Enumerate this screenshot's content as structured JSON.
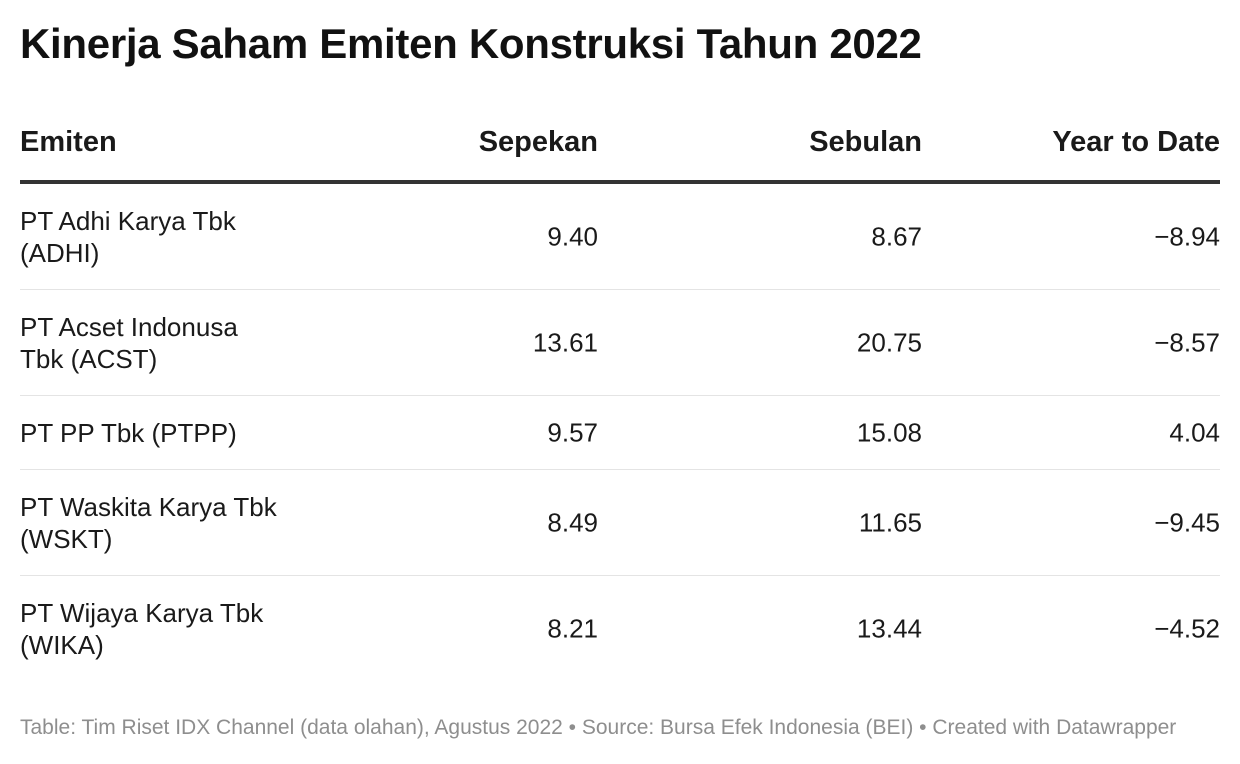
{
  "title": "Kinerja Saham Emiten Konstruksi Tahun 2022",
  "chart_data": {
    "type": "table",
    "title": "Kinerja Saham Emiten Konstruksi Tahun 2022",
    "columns": [
      "Emiten",
      "Sepekan",
      "Sebulan",
      "Year to Date"
    ],
    "rows": [
      {
        "emiten": "PT Adhi Karya Tbk (ADHI)",
        "sepekan": "9.40",
        "sebulan": "8.67",
        "ytd": "−8.94"
      },
      {
        "emiten": "PT Acset Indonusa Tbk (ACST)",
        "sepekan": "13.61",
        "sebulan": "20.75",
        "ytd": "−8.57"
      },
      {
        "emiten": "PT PP Tbk (PTPP)",
        "sepekan": "9.57",
        "sebulan": "15.08",
        "ytd": "4.04"
      },
      {
        "emiten": "PT Waskita Karya Tbk (WSKT)",
        "sepekan": "8.49",
        "sebulan": "11.65",
        "ytd": "−9.45"
      },
      {
        "emiten": "PT Wijaya Karya Tbk (WIKA)",
        "sepekan": "8.21",
        "sebulan": "13.44",
        "ytd": "−4.52"
      }
    ]
  },
  "footer": "Table: Tim Riset IDX Channel (data olahan), Agustus 2022 • Source: Bursa Efek Indonesia (BEI) • Created with Datawrapper"
}
